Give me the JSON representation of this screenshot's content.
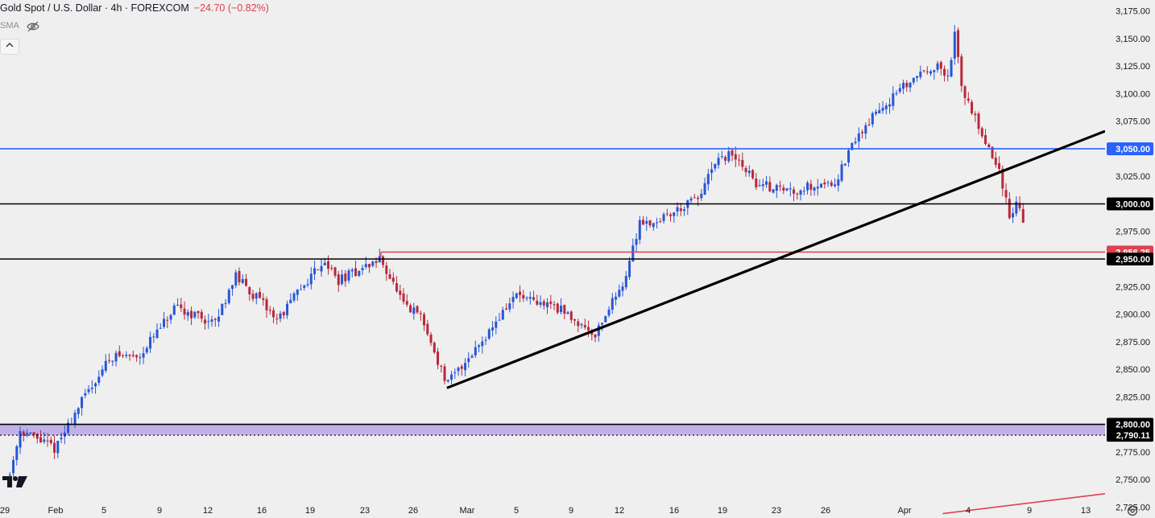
{
  "header": {
    "title": "Gold Spot / U.S. Dollar · 4h · FOREXCOM",
    "change": "−24.70 (−0.82%)",
    "indicator": "SMA"
  },
  "colors": {
    "background": "#efefef",
    "up": "#2756d6",
    "down": "#b8283a",
    "blue_line": "#2962ff",
    "red_line": "#e0404f",
    "black_line": "#000000",
    "zone": "#b9a6e6"
  },
  "icons": [
    "eye-off-icon",
    "chevron-up-icon",
    "tradingview-logo-icon",
    "settings-icon"
  ],
  "chart_data": {
    "type": "candlestick",
    "timeframe": "4h",
    "ylim": [
      2715,
      3185
    ],
    "y_ticks": [
      2725,
      2750,
      2775,
      2800,
      2825,
      2850,
      2875,
      2900,
      2925,
      2950,
      2975,
      3000,
      3025,
      3050,
      3075,
      3100,
      3125,
      3150,
      3175
    ],
    "y_tick_labels": [
      "2,725.00",
      "2,750.00",
      "2,775.00",
      "2,800.00",
      "2,825.00",
      "2,850.00",
      "2,875.00",
      "2,900.00",
      "2,925.00",
      "2,950.00",
      "2,975.00",
      "3,000.00",
      "3,025.00",
      "3,050.00",
      "3,075.00",
      "3,100.00",
      "3,125.00",
      "3,150.00",
      "3,175.00"
    ],
    "x_labels": [
      "29",
      "Feb",
      "5",
      "9",
      "12",
      "16",
      "19",
      "23",
      "26",
      "Mar",
      "5",
      "9",
      "12",
      "16",
      "19",
      "23",
      "26",
      "Apr",
      "4",
      "9",
      "13"
    ],
    "path": [
      [
        "2025-01-29 12:00",
        2755
      ],
      [
        "2025-01-30 12:00",
        2795
      ],
      [
        "2025-02-03 00:00",
        2778
      ],
      [
        "2025-02-04 00:00",
        2818
      ],
      [
        "2025-02-05 12:00",
        2862
      ],
      [
        "2025-02-07 12:00",
        2862
      ],
      [
        "2025-02-10 00:00",
        2905
      ],
      [
        "2025-02-11 12:00",
        2898
      ],
      [
        "2025-02-12 12:00",
        2890
      ],
      [
        "2025-02-14 00:00",
        2935
      ],
      [
        "2025-02-17 00:00",
        2895
      ],
      [
        "2025-02-18 00:00",
        2915
      ],
      [
        "2025-02-20 00:00",
        2950
      ],
      [
        "2025-02-21 00:00",
        2930
      ],
      [
        "2025-02-24 00:00",
        2950
      ],
      [
        "2025-02-25 12:00",
        2905
      ],
      [
        "2025-02-26 12:00",
        2900
      ],
      [
        "2025-02-27 12:00",
        2868
      ],
      [
        "2025-02-28 12:00",
        2836
      ],
      [
        "2025-03-03 12:00",
        2888
      ],
      [
        "2025-03-05 00:00",
        2918
      ],
      [
        "2025-03-06 12:00",
        2908
      ],
      [
        "2025-03-07 12:00",
        2910
      ],
      [
        "2025-03-10 12:00",
        2882
      ],
      [
        "2025-03-12 12:00",
        2935
      ],
      [
        "2025-03-13 12:00",
        2985
      ],
      [
        "2025-03-14 12:00",
        2983
      ],
      [
        "2025-03-17 12:00",
        3005
      ],
      [
        "2025-03-18 12:00",
        3035
      ],
      [
        "2025-03-19 12:00",
        3045
      ],
      [
        "2025-03-20 12:00",
        3035
      ],
      [
        "2025-03-21 12:00",
        3018
      ],
      [
        "2025-03-24 00:00",
        3012
      ],
      [
        "2025-03-25 12:00",
        3018
      ],
      [
        "2025-03-26 12:00",
        3020
      ],
      [
        "2025-03-27 12:00",
        3058
      ],
      [
        "2025-03-28 12:00",
        3082
      ],
      [
        "2025-03-31 12:00",
        3122
      ],
      [
        "2025-04-01 12:00",
        3125
      ],
      [
        "2025-04-02 12:00",
        3113
      ],
      [
        "2025-04-03 00:00",
        3158
      ],
      [
        "2025-04-03 12:00",
        3105
      ],
      [
        "2025-04-04 12:00",
        3080
      ],
      [
        "2025-04-06 12:00",
        3030
      ],
      [
        "2025-04-07 12:00",
        2985
      ],
      [
        "2025-04-08 00:00",
        3005
      ],
      [
        "2025-04-08 12:00",
        2985
      ]
    ],
    "horizontal_levels": [
      {
        "price": 3050.0,
        "label": "3,050.00",
        "color": "#2962ff"
      },
      {
        "price": 3000.0,
        "label": "3,000.00",
        "color": "#000000"
      },
      {
        "price": 2956.25,
        "label": "2,956.25",
        "color": "#e0404f"
      },
      {
        "price": 2950.0,
        "label": "2,950.00",
        "color": "#000000"
      },
      {
        "price": 2800.0,
        "label": "2,800.00",
        "color": "#000000"
      },
      {
        "price": 2790.11,
        "label": "2,790.11",
        "color": "#000000"
      }
    ],
    "zone": {
      "from": 2790.11,
      "to": 2800.0,
      "color": "#b9a6e6"
    },
    "trendlines": [
      {
        "name": "support",
        "from": [
          "2025-02-28 12:00",
          2833
        ],
        "to": [
          "2025-04-13 00:00",
          3066
        ],
        "color": "#000000"
      },
      {
        "name": "resistance",
        "from": [
          "2025-02-24 00:00",
          2956.25
        ],
        "to": [
          "2025-04-13 00:00",
          2956.25
        ],
        "color": "#e0404f"
      },
      {
        "name": "red-ray",
        "from": [
          "2025-04-02 00:00",
          2719
        ],
        "to": [
          "2025-04-13 00:00",
          2737
        ],
        "color": "#e0404f"
      }
    ],
    "last_price": 2985
  }
}
